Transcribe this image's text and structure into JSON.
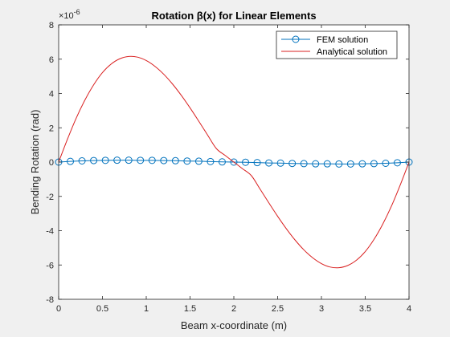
{
  "chart_data": {
    "type": "line",
    "title": "Rotation  β(x)  for  Linear  Elements",
    "xlabel": "Beam x-coordinate (m)",
    "ylabel": "Bending Rotation (rad)",
    "exponent_label": "×10",
    "exponent_power": "-6",
    "xlim": [
      0,
      4
    ],
    "ylim": [
      -8,
      8
    ],
    "y_scale": 1e-06,
    "x_ticks": [
      "0",
      "0.5",
      "1",
      "1.5",
      "2",
      "2.5",
      "3",
      "3.5",
      "4"
    ],
    "y_ticks": [
      "-8",
      "-6",
      "-4",
      "-2",
      "0",
      "2",
      "4",
      "6",
      "8"
    ],
    "grid": false,
    "legend_position": "top-right",
    "series": [
      {
        "name": "FEM solution",
        "color": "#0072BD",
        "marker": "circle",
        "x": [
          0,
          0.1333,
          0.2667,
          0.4,
          0.5333,
          0.6667,
          0.8,
          0.9333,
          1.0667,
          1.2,
          1.3333,
          1.4667,
          1.6,
          1.7333,
          1.8667,
          2.0,
          2.1333,
          2.2667,
          2.4,
          2.5333,
          2.6667,
          2.8,
          2.9333,
          3.0667,
          3.2,
          3.3333,
          3.4667,
          3.6,
          3.7333,
          3.8667,
          4.0
        ],
        "y": [
          0,
          0.04,
          0.07,
          0.09,
          0.1,
          0.11,
          0.11,
          0.1,
          0.1,
          0.09,
          0.08,
          0.06,
          0.05,
          0.03,
          0.01,
          0,
          -0.01,
          -0.03,
          -0.05,
          -0.06,
          -0.08,
          -0.09,
          -0.1,
          -0.1,
          -0.11,
          -0.11,
          -0.1,
          -0.09,
          -0.07,
          -0.04,
          0
        ]
      },
      {
        "name": "Analytical solution",
        "color": "#D92020",
        "marker": "none",
        "function": "A*(1 - 6*u + 6*u^2)*u*? (sampled)",
        "x": [
          0,
          0.1,
          0.2,
          0.3,
          0.4,
          0.5,
          0.6,
          0.7,
          0.8,
          0.9,
          1.0,
          1.1,
          1.2,
          1.3,
          1.4,
          1.5,
          1.6,
          1.7,
          1.8,
          1.9,
          2.0,
          2.1,
          2.2,
          2.3,
          2.4,
          2.5,
          2.6,
          2.7,
          2.8,
          2.9,
          3.0,
          3.1,
          3.2,
          3.3,
          3.4,
          3.5,
          3.6,
          3.7,
          3.8,
          3.9,
          4.0
        ],
        "y": [
          0,
          1.33,
          2.56,
          3.62,
          4.51,
          5.22,
          5.72,
          6.03,
          6.16,
          6.12,
          5.92,
          5.58,
          5.12,
          4.55,
          3.89,
          3.16,
          2.38,
          1.58,
          0.79,
          0.39,
          0,
          -0.39,
          -0.79,
          -1.58,
          -2.38,
          -3.16,
          -3.89,
          -4.55,
          -5.12,
          -5.58,
          -5.92,
          -6.12,
          -6.16,
          -6.03,
          -5.72,
          -5.22,
          -4.51,
          -3.62,
          -2.56,
          -1.33,
          0
        ]
      }
    ]
  }
}
